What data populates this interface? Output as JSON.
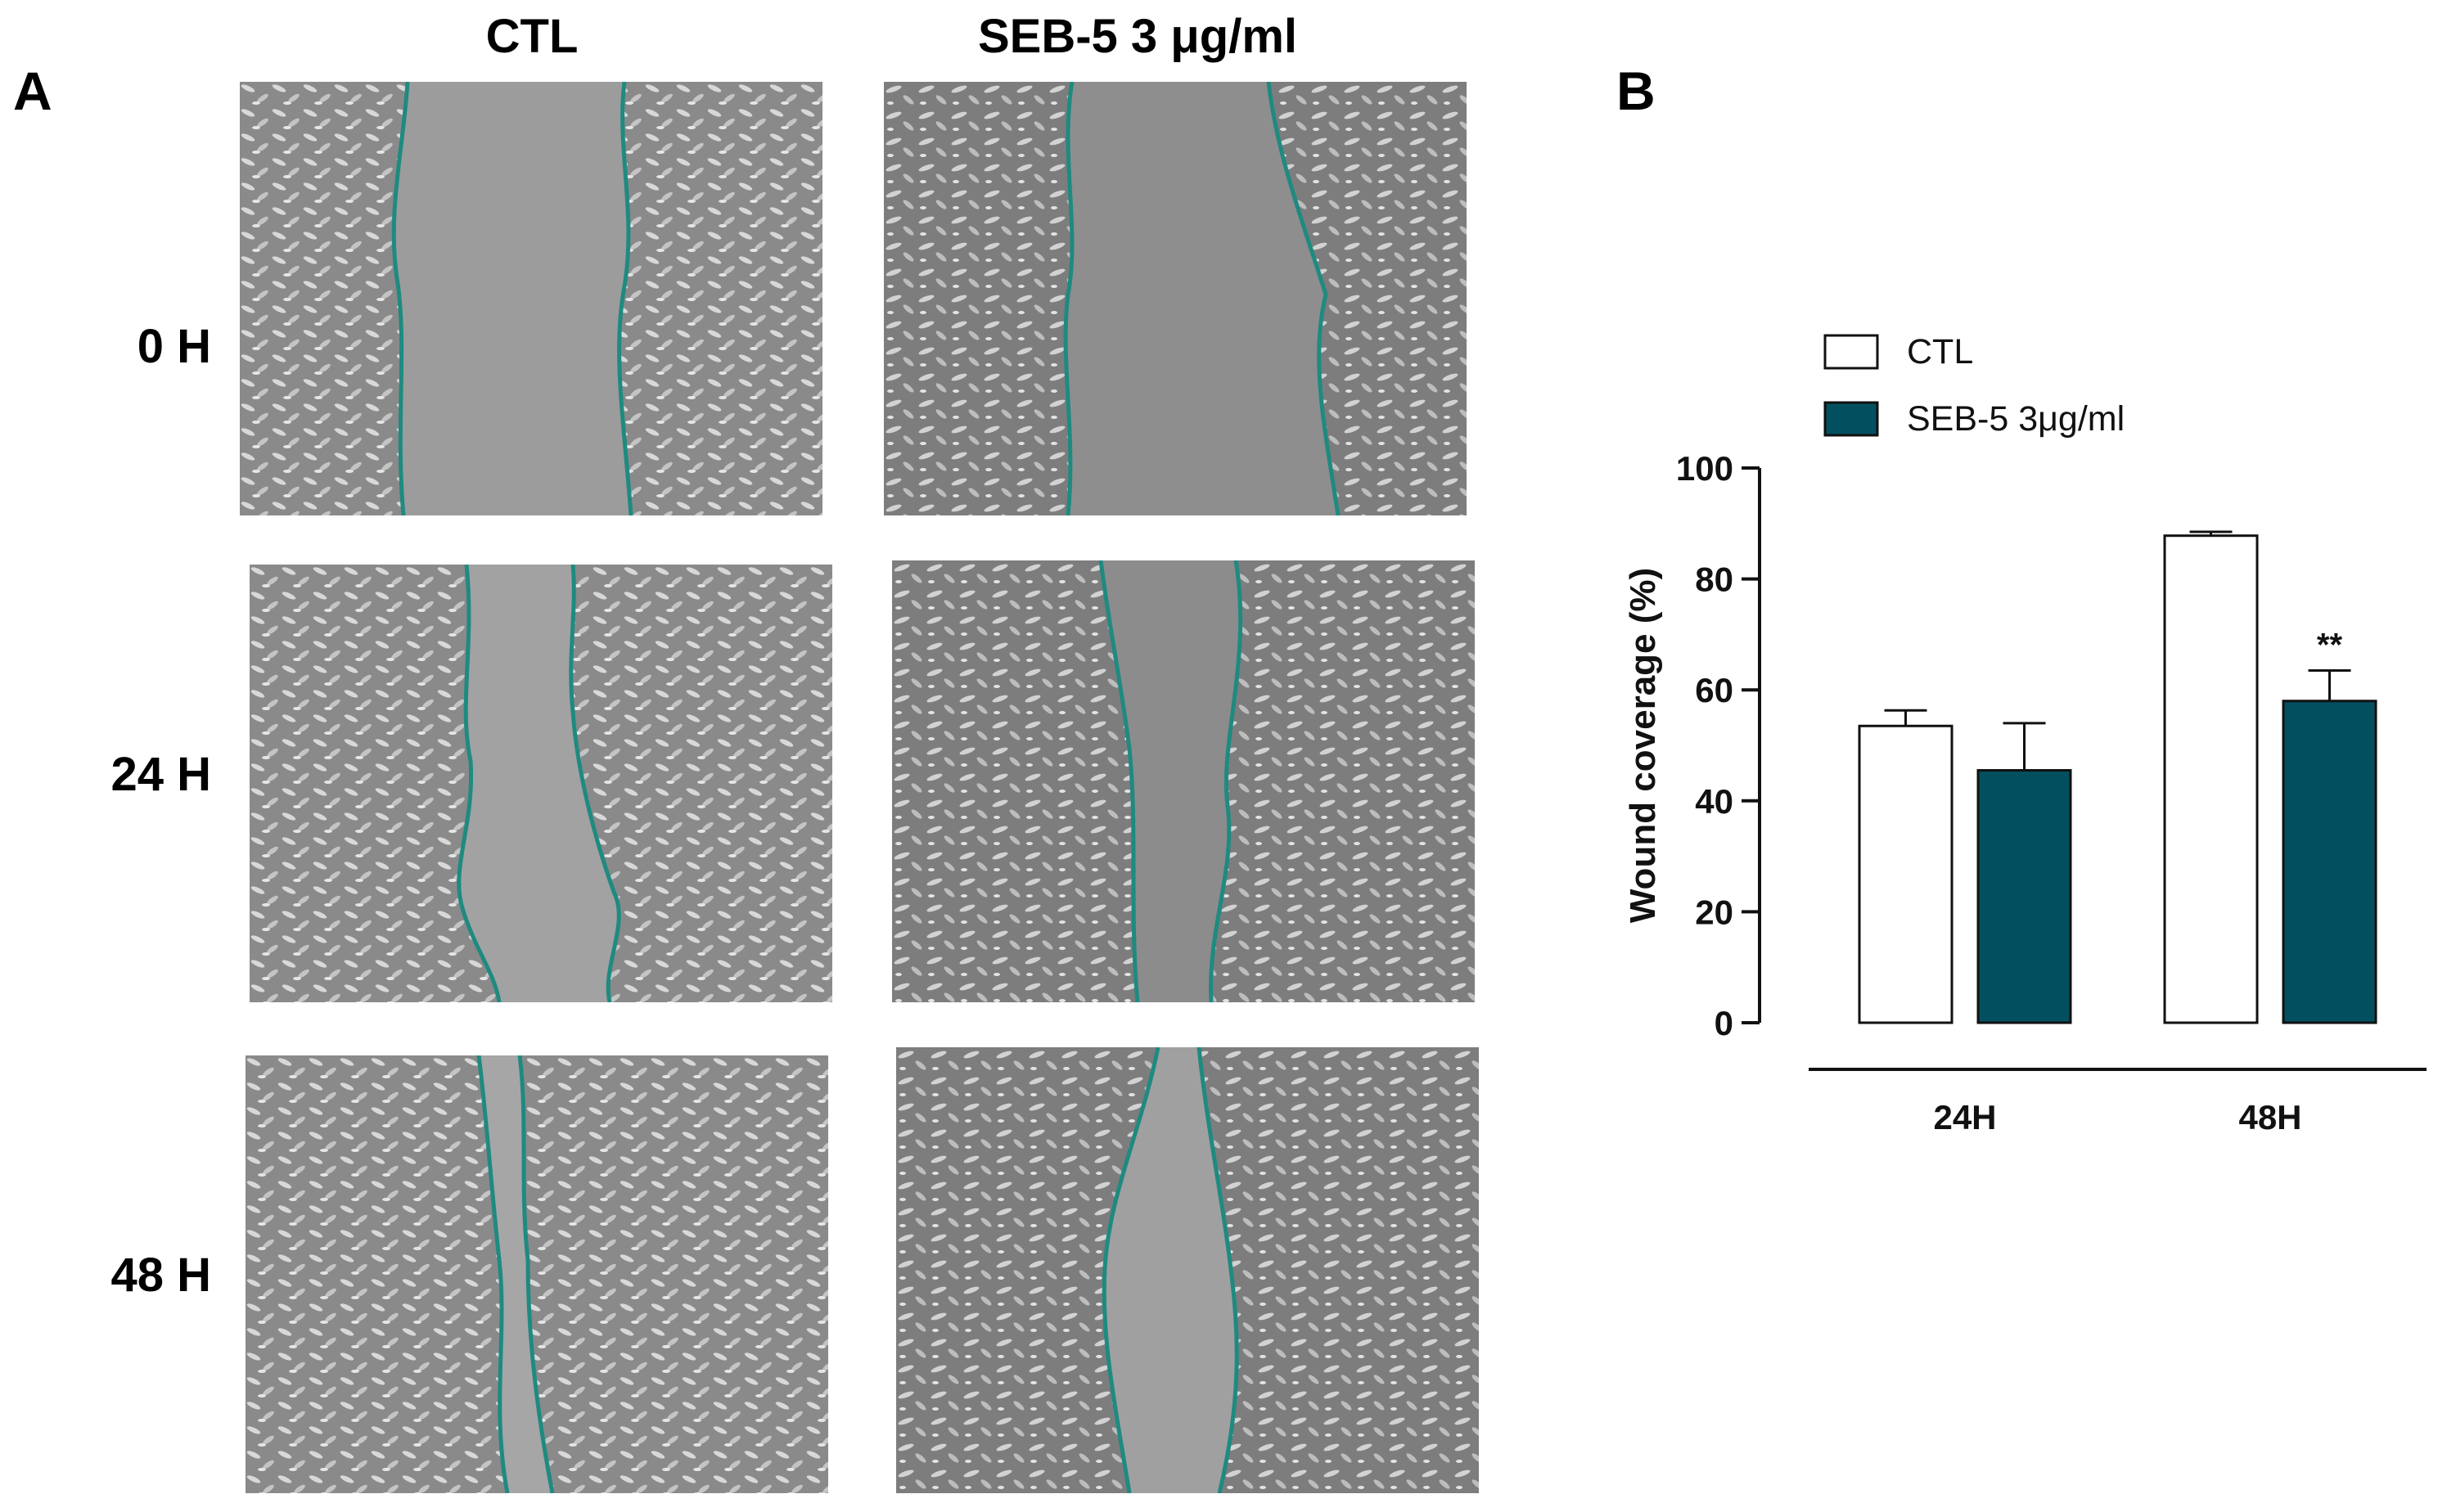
{
  "panels": {
    "a": "A",
    "b": "B"
  },
  "micrographs": {
    "columns": [
      "CTL",
      "SEB-5 3 μg/ml"
    ],
    "rows": [
      "0 H",
      "24 H",
      "48 H"
    ],
    "outline_color": "#1f8a80"
  },
  "chart_data": {
    "type": "bar",
    "categories": [
      "24H",
      "48H"
    ],
    "series": [
      {
        "name": "CTL",
        "values": [
          53.5,
          87.8
        ],
        "errors": [
          2.8,
          0.7
        ],
        "color": "#ffffff"
      },
      {
        "name": "SEB-5 3μg/ml",
        "values": [
          45.5,
          58.0
        ],
        "errors": [
          8.5,
          5.5
        ],
        "color": "#02505f"
      }
    ],
    "annotations": [
      {
        "series": 1,
        "category": 1,
        "text": "**"
      }
    ],
    "ylabel": "Wound coverage (%)",
    "xlabel": "",
    "title": "",
    "ylim": [
      0,
      100
    ],
    "yticks": [
      0,
      20,
      40,
      60,
      80,
      100
    ],
    "legend_position": "top-left",
    "grid": false
  }
}
